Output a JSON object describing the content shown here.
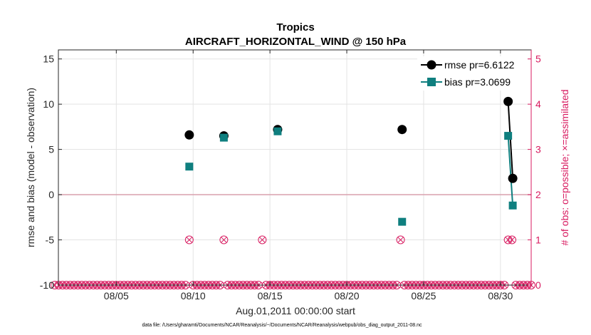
{
  "chart_data": {
    "type": "line",
    "title": "Tropics",
    "subtitle": "AIRCRAFT_HORIZONTAL_WIND @ 150 hPa",
    "xlabel": "Aug.01,2011 00:00:00 start",
    "ylabel": "rmse and bias (model - observation)",
    "ylabel_right": "# of obs: o=possible; ×=assimilated",
    "footnote": "data file: /Users/gharamti/Documents/NCAR/Reanalysis/~/Documents/NCAR/Reanalysis/webpub/obs_diag_output_2011-08.nc",
    "xlim": [
      1,
      32
    ],
    "ylim": [
      -10,
      16
    ],
    "ylim_right": [
      0,
      5.2
    ],
    "x_ticks": [
      5,
      10,
      15,
      20,
      25,
      30
    ],
    "x_tick_labels": [
      "08/05",
      "08/10",
      "08/15",
      "08/20",
      "08/25",
      "08/30"
    ],
    "y_ticks": [
      -10,
      -5,
      0,
      5,
      10,
      15
    ],
    "y_tick_labels": [
      "-10",
      "-5",
      "0",
      "5",
      "10",
      "15"
    ],
    "y_ticks_right": [
      0,
      1,
      2,
      3,
      4,
      5
    ],
    "y_tick_labels_right": [
      "0",
      "1",
      "2",
      "3",
      "4",
      "5"
    ],
    "series": [
      {
        "name": "rmse pr=6.6122",
        "color": "#000000",
        "points": [
          [
            9.75,
            6.6
          ],
          [
            12.0,
            6.5
          ],
          [
            15.5,
            7.2
          ],
          [
            23.6,
            7.2
          ],
          [
            30.5,
            10.3
          ],
          [
            30.8,
            1.8
          ]
        ]
      },
      {
        "name": "bias pr=3.0699",
        "color": "#0f7f7f",
        "points": [
          [
            9.75,
            3.1
          ],
          [
            12.0,
            6.3
          ],
          [
            15.5,
            7.0
          ],
          [
            23.6,
            -3.0
          ],
          [
            30.5,
            6.5
          ],
          [
            30.8,
            -1.2
          ]
        ]
      }
    ],
    "obs_counts": {
      "color": "#d81b60",
      "times": [
        1.0,
        1.25,
        1.5,
        1.75,
        2.0,
        2.25,
        2.5,
        2.75,
        3.0,
        3.25,
        3.5,
        3.75,
        4.0,
        4.25,
        4.5,
        4.75,
        5.0,
        5.25,
        5.5,
        5.75,
        6.0,
        6.25,
        6.5,
        6.75,
        7.0,
        7.25,
        7.5,
        7.75,
        8.0,
        8.25,
        8.5,
        8.75,
        9.0,
        9.25,
        9.5,
        9.75,
        10.0,
        10.25,
        10.5,
        10.75,
        11.0,
        11.25,
        11.5,
        11.75,
        12.0,
        12.25,
        12.5,
        12.75,
        13.0,
        13.25,
        13.5,
        13.75,
        14.0,
        14.25,
        14.5,
        14.75,
        15.0,
        15.25,
        15.5,
        15.75,
        16.0,
        16.25,
        16.5,
        16.75,
        17.0,
        17.25,
        17.5,
        17.75,
        18.0,
        18.25,
        18.5,
        18.75,
        19.0,
        19.25,
        19.5,
        19.75,
        20.0,
        20.25,
        20.5,
        20.75,
        21.0,
        21.25,
        21.5,
        21.75,
        22.0,
        22.25,
        22.5,
        22.75,
        23.0,
        23.25,
        23.5,
        23.75,
        24.0,
        24.25,
        24.5,
        24.75,
        25.0,
        25.25,
        25.5,
        25.75,
        26.0,
        26.25,
        26.5,
        26.75,
        27.0,
        27.25,
        27.5,
        27.75,
        28.0,
        28.25,
        28.5,
        28.75,
        29.0,
        29.25,
        29.5,
        29.75,
        30.0,
        30.25,
        30.5,
        30.75,
        31.0,
        31.25,
        31.5,
        31.75,
        32.0
      ],
      "counts": [
        0,
        0,
        0,
        0,
        0,
        0,
        0,
        0,
        0,
        0,
        0,
        0,
        0,
        0,
        0,
        0,
        0,
        0,
        0,
        0,
        0,
        0,
        0,
        0,
        0,
        0,
        0,
        0,
        0,
        0,
        0,
        0,
        0,
        0,
        0,
        1,
        0,
        0,
        0,
        0,
        0,
        0,
        0,
        0,
        1,
        0,
        0,
        0,
        0,
        0,
        0,
        0,
        0,
        0,
        1,
        0,
        0,
        0,
        0,
        0,
        0,
        0,
        0,
        0,
        0,
        0,
        0,
        0,
        0,
        0,
        0,
        0,
        0,
        0,
        0,
        0,
        0,
        0,
        0,
        0,
        0,
        0,
        0,
        0,
        0,
        0,
        0,
        0,
        0,
        0,
        1,
        0,
        0,
        0,
        0,
        0,
        0,
        0,
        0,
        0,
        0,
        0,
        0,
        0,
        0,
        0,
        0,
        0,
        0,
        0,
        0,
        0,
        0,
        0,
        0,
        0,
        0,
        0,
        1,
        1,
        0,
        0,
        0,
        0,
        0
      ]
    }
  }
}
